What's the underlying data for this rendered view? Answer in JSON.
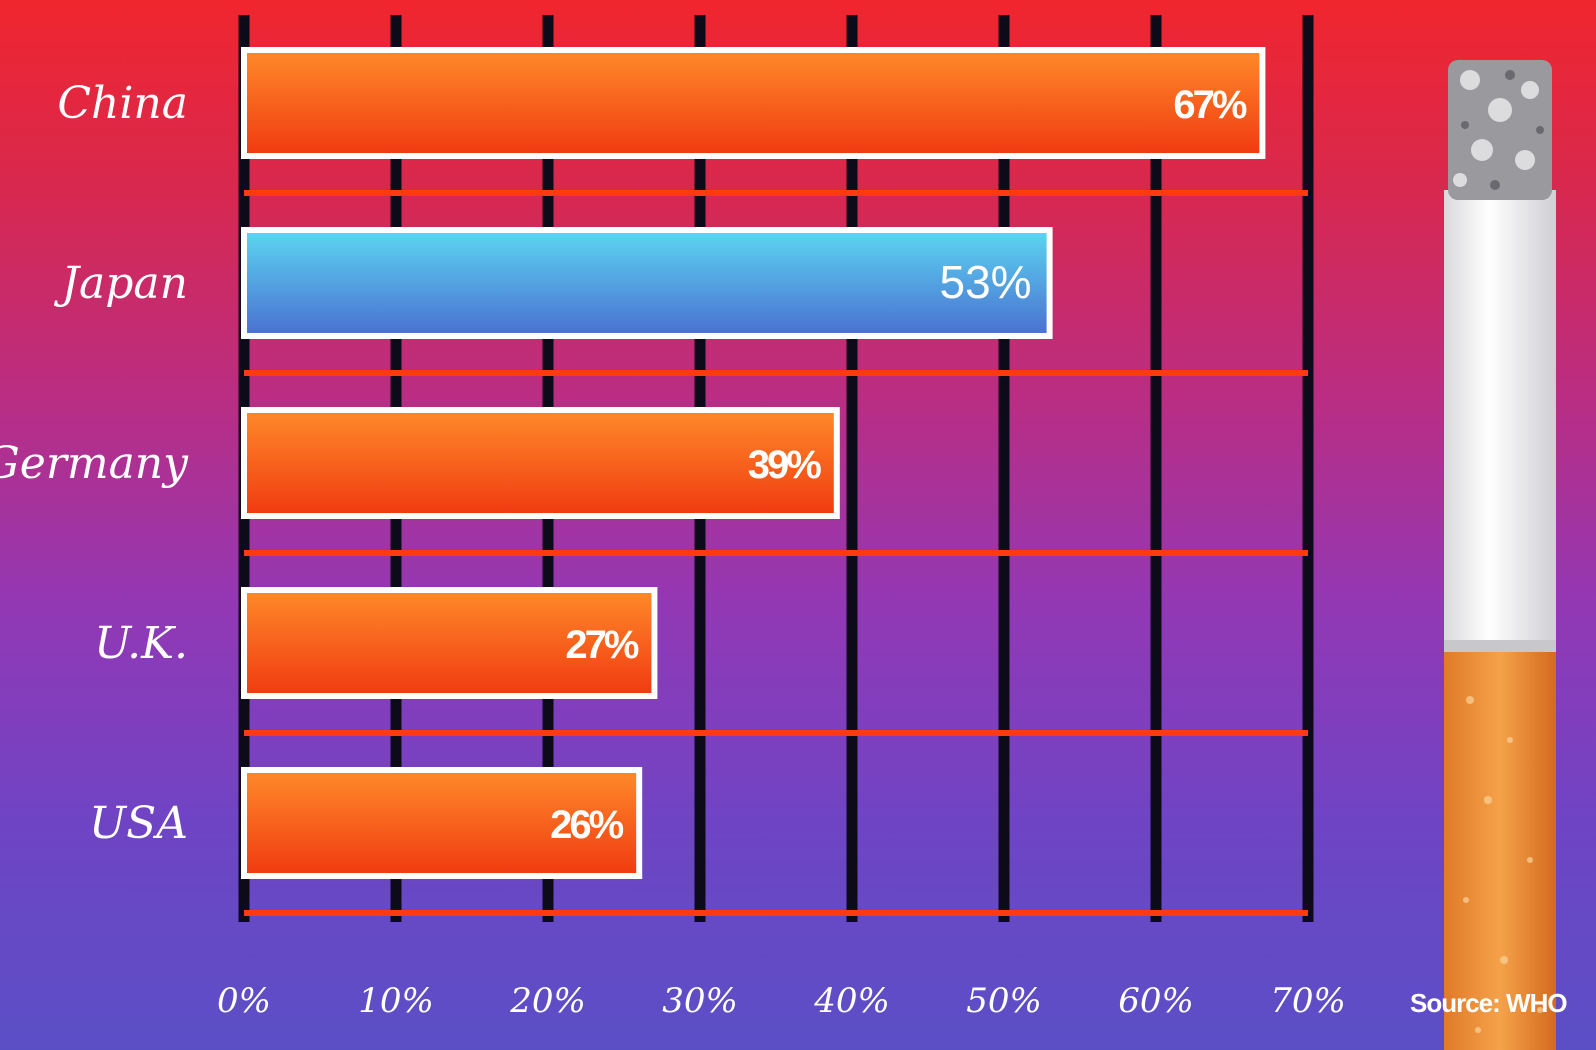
{
  "chart_data": {
    "type": "bar",
    "orientation": "horizontal",
    "categories": [
      "China",
      "Japan",
      "Germany",
      "U.K.",
      "USA"
    ],
    "values": [
      67,
      53,
      39,
      27,
      26
    ],
    "value_labels": [
      "67%",
      "53%",
      "39%",
      "27%",
      "26%"
    ],
    "xlim": [
      0,
      70
    ],
    "xticks": [
      0,
      10,
      20,
      30,
      40,
      50,
      60,
      70
    ],
    "xtick_labels": [
      "0%",
      "10%",
      "20%",
      "30%",
      "40%",
      "50%",
      "60%",
      "70%"
    ],
    "highlight_category": "Japan",
    "grid": true,
    "colors": {
      "bar": "#f04a14",
      "bar_light": "#ff8a2a",
      "highlight_top": "#5cd6f2",
      "highlight_bottom": "#4a6fd0",
      "gridline": "#0d0a1a",
      "separator": "#ff3a10",
      "bar_border": "#ffffff"
    },
    "source": "Source: WHO"
  },
  "decoration": {
    "cigarette_icon": "cigarette-icon"
  }
}
